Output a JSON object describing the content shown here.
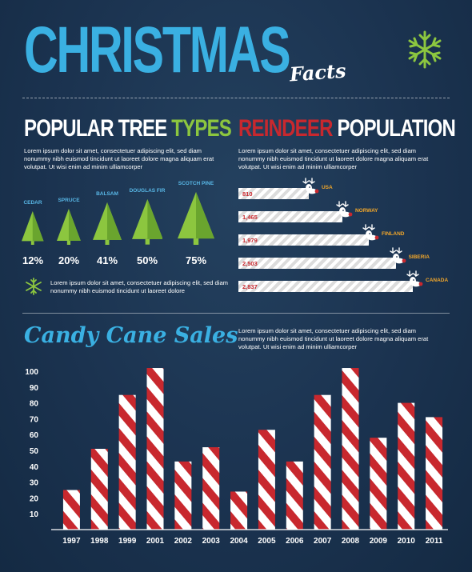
{
  "header": {
    "title": "CHRISTMAS",
    "subtitle": "Facts"
  },
  "trees": {
    "heading_a": "POPULAR TREE ",
    "heading_b": "TYPES",
    "body": "Lorem ipsum dolor sit amet, consectetuer adipiscing elit, sed diam nonummy nibh euismod tincidunt ut laoreet dolore magna aliquam erat volutpat. Ut wisi enim ad minim ulliamcorper",
    "items": [
      {
        "label": "CEDAR",
        "pct": "12%"
      },
      {
        "label": "SPRUCE",
        "pct": "20%"
      },
      {
        "label": "BALSAM",
        "pct": "41%"
      },
      {
        "label": "DOUGLAS FIR",
        "pct": "50%"
      },
      {
        "label": "SCOTCH PINE",
        "pct": "75%"
      }
    ],
    "note": "Lorem ipsum dolor sit amet, consectetuer adipiscing elit, sed diam nonummy nibh euismod tincidunt ut laoreet dolore"
  },
  "reindeer": {
    "heading_a": "REINDEER ",
    "heading_b": "POPULATION",
    "body": "Lorem ipsum dolor sit amet, consectetuer adipiscing elit, sed diam nonummy nibh euismod tincidunt ut laoreet dolore magna aliquam erat volutpat. Ut wisi enim ad minim ulliamcorper",
    "items": [
      {
        "country": "USA",
        "value": "810"
      },
      {
        "country": "NORWAY",
        "value": "1,465"
      },
      {
        "country": "FINLAND",
        "value": "1,979"
      },
      {
        "country": "SIBERIA",
        "value": "2,503"
      },
      {
        "country": "CANADA",
        "value": "2,837"
      }
    ]
  },
  "candy": {
    "title": "Candy Cane Sales",
    "body": "Lorem ipsum dolor sit amet, consectetuer adipiscing elit, sed diam nonummy nibh euismod tincidunt ut laoreet dolore magna aliquam erat volutpat. Ut wisi enim ad minim ulliamcorper"
  },
  "colors": {
    "background": "#1b3350",
    "title_blue": "#3ab0e2",
    "green": "#8cc63f",
    "red": "#c8282e",
    "orange": "#f1a62a"
  },
  "icons": [
    "snowflake-icon",
    "tree-icon",
    "reindeer-icon"
  ],
  "chart_data": [
    {
      "type": "bar",
      "title": "Candy Cane Sales",
      "categories": [
        "1997",
        "1998",
        "1999",
        "2001",
        "2002",
        "2003",
        "2004",
        "2005",
        "2006",
        "2007",
        "2008",
        "2009",
        "2010",
        "2011"
      ],
      "values": [
        25,
        51,
        85,
        102,
        43,
        52,
        24,
        63,
        43,
        85,
        102,
        58,
        80,
        71
      ],
      "ylim": [
        0,
        100
      ],
      "yticks": [
        10,
        20,
        30,
        40,
        50,
        60,
        70,
        80,
        90,
        100
      ],
      "xlabel": "",
      "ylabel": "",
      "grid": false
    },
    {
      "type": "bar",
      "title": "REINDEER POPULATION",
      "orientation": "horizontal",
      "categories": [
        "USA",
        "NORWAY",
        "FINLAND",
        "SIBERIA",
        "CANADA"
      ],
      "values": [
        810,
        1465,
        1979,
        2503,
        2837
      ]
    },
    {
      "type": "bar",
      "title": "POPULAR TREE TYPES",
      "categories": [
        "CEDAR",
        "SPRUCE",
        "BALSAM",
        "DOUGLAS FIR",
        "SCOTCH PINE"
      ],
      "values": [
        12,
        20,
        41,
        50,
        75
      ],
      "unit": "%"
    }
  ]
}
